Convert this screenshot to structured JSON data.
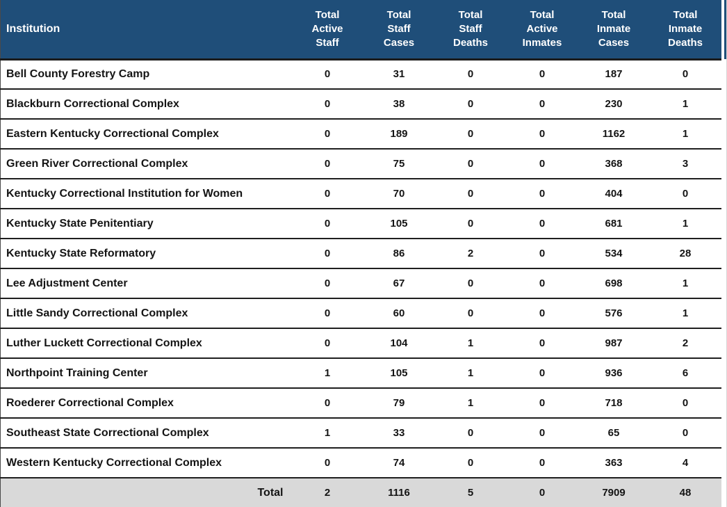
{
  "colors": {
    "header_bg": "#1f4e79",
    "header_text": "#ffffff",
    "body_text": "#141414",
    "total_row_bg": "#d9d9d9",
    "row_divider": "#1f1f1f"
  },
  "table": {
    "columns": [
      {
        "label": "Institution"
      },
      {
        "label": "Total Active Staff"
      },
      {
        "label": "Total Staff Cases"
      },
      {
        "label": "Total Staff Deaths"
      },
      {
        "label": "Total Active Inmates"
      },
      {
        "label": "Total Inmate Cases"
      },
      {
        "label": "Total Inmate Deaths"
      }
    ],
    "rows": [
      {
        "institution": "Bell County Forestry Camp",
        "values": [
          0,
          31,
          0,
          0,
          187,
          0
        ]
      },
      {
        "institution": "Blackburn Correctional Complex",
        "values": [
          0,
          38,
          0,
          0,
          230,
          1
        ]
      },
      {
        "institution": "Eastern Kentucky Correctional Complex",
        "values": [
          0,
          189,
          0,
          0,
          1162,
          1
        ]
      },
      {
        "institution": "Green River Correctional Complex",
        "values": [
          0,
          75,
          0,
          0,
          368,
          3
        ]
      },
      {
        "institution": "Kentucky Correctional Institution for Women",
        "values": [
          0,
          70,
          0,
          0,
          404,
          0
        ]
      },
      {
        "institution": "Kentucky State Penitentiary",
        "values": [
          0,
          105,
          0,
          0,
          681,
          1
        ]
      },
      {
        "institution": "Kentucky State Reformatory",
        "values": [
          0,
          86,
          2,
          0,
          534,
          28
        ]
      },
      {
        "institution": "Lee Adjustment Center",
        "values": [
          0,
          67,
          0,
          0,
          698,
          1
        ]
      },
      {
        "institution": "Little Sandy Correctional Complex",
        "values": [
          0,
          60,
          0,
          0,
          576,
          1
        ]
      },
      {
        "institution": "Luther Luckett Correctional Complex",
        "values": [
          0,
          104,
          1,
          0,
          987,
          2
        ]
      },
      {
        "institution": "Northpoint Training Center",
        "values": [
          1,
          105,
          1,
          0,
          936,
          6
        ]
      },
      {
        "institution": "Roederer Correctional Complex",
        "values": [
          0,
          79,
          1,
          0,
          718,
          0
        ]
      },
      {
        "institution": "Southeast State Correctional Complex",
        "values": [
          1,
          33,
          0,
          0,
          65,
          0
        ]
      },
      {
        "institution": "Western Kentucky Correctional Complex",
        "values": [
          0,
          74,
          0,
          0,
          363,
          4
        ]
      }
    ],
    "total": {
      "label": "Total",
      "values": [
        2,
        1116,
        5,
        0,
        7909,
        48
      ]
    }
  }
}
